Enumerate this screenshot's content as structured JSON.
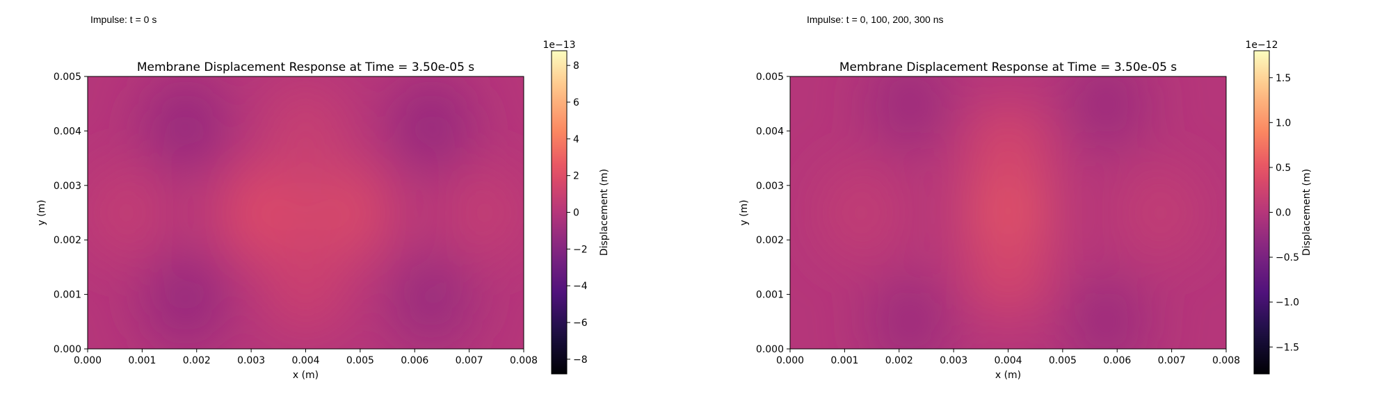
{
  "panels": [
    {
      "caption": "Impulse: t = 0 s"
    },
    {
      "caption": "Impulse: t = 0, 100, 200, 300 ns"
    }
  ],
  "chart_data": [
    {
      "type": "heatmap",
      "colormap": "magma",
      "title": "Membrane Displacement Response at Time = 3.50e-05 s",
      "xlabel": "x (m)",
      "ylabel": "y (m)",
      "xlim": [
        0,
        0.008
      ],
      "ylim": [
        0,
        0.005
      ],
      "x_ticks": [
        "0.000",
        "0.001",
        "0.002",
        "0.003",
        "0.004",
        "0.005",
        "0.006",
        "0.007",
        "0.008"
      ],
      "y_ticks": [
        "0.000",
        "0.001",
        "0.002",
        "0.003",
        "0.004",
        "0.005"
      ],
      "colorbar": {
        "label": "Displacement (m)",
        "offset_text": "1e−13",
        "range": [
          -8.8,
          8.8
        ],
        "ticks": [
          -8,
          -6,
          -4,
          -2,
          0,
          2,
          4,
          6,
          8
        ],
        "tick_labels": [
          "−8",
          "−6",
          "−4",
          "−2",
          "0",
          "2",
          "4",
          "6",
          "8"
        ]
      },
      "field_features": [
        {
          "x": 0.0032,
          "y": 0.0025,
          "value": 1.8
        },
        {
          "x": 0.0048,
          "y": 0.0025,
          "value": 1.6
        },
        {
          "x": 0.004,
          "y": 0.0012,
          "value": 1.0
        },
        {
          "x": 0.004,
          "y": 0.004,
          "value": 0.8
        },
        {
          "x": 0.0018,
          "y": 0.0041,
          "value": -1.2
        },
        {
          "x": 0.0018,
          "y": 0.0009,
          "value": -1.2
        },
        {
          "x": 0.0063,
          "y": 0.0041,
          "value": -1.2
        },
        {
          "x": 0.0063,
          "y": 0.0009,
          "value": -1.1
        },
        {
          "x": 0.0007,
          "y": 0.0025,
          "value": 0.6
        },
        {
          "x": 0.0073,
          "y": 0.0025,
          "value": 0.6
        }
      ]
    },
    {
      "type": "heatmap",
      "colormap": "magma",
      "title": "Membrane Displacement Response at Time = 3.50e-05 s",
      "xlabel": "x (m)",
      "ylabel": "y (m)",
      "xlim": [
        0,
        0.008
      ],
      "ylim": [
        0,
        0.005
      ],
      "x_ticks": [
        "0.000",
        "0.001",
        "0.002",
        "0.003",
        "0.004",
        "0.005",
        "0.006",
        "0.007",
        "0.008"
      ],
      "y_ticks": [
        "0.000",
        "0.001",
        "0.002",
        "0.003",
        "0.004",
        "0.005"
      ],
      "colorbar": {
        "label": "Displacement (m)",
        "offset_text": "1e−12",
        "range": [
          -1.8,
          1.8
        ],
        "ticks": [
          -1.5,
          -1.0,
          -0.5,
          0.0,
          0.5,
          1.0,
          1.5
        ],
        "tick_labels": [
          "−1.5",
          "−1.0",
          "−0.5",
          "0.0",
          "0.5",
          "1.0",
          "1.5"
        ]
      },
      "field_features": [
        {
          "x": 0.004,
          "y": 0.0025,
          "value": 0.55
        },
        {
          "x": 0.004,
          "y": 0.0015,
          "value": 0.3
        },
        {
          "x": 0.004,
          "y": 0.0036,
          "value": 0.3
        },
        {
          "x": 0.0013,
          "y": 0.0025,
          "value": 0.12
        },
        {
          "x": 0.0068,
          "y": 0.0025,
          "value": 0.12
        },
        {
          "x": 0.0022,
          "y": 0.0045,
          "value": -0.2
        },
        {
          "x": 0.0058,
          "y": 0.0045,
          "value": -0.2
        },
        {
          "x": 0.0022,
          "y": 0.0005,
          "value": -0.2
        },
        {
          "x": 0.0058,
          "y": 0.0005,
          "value": -0.2
        }
      ]
    }
  ]
}
